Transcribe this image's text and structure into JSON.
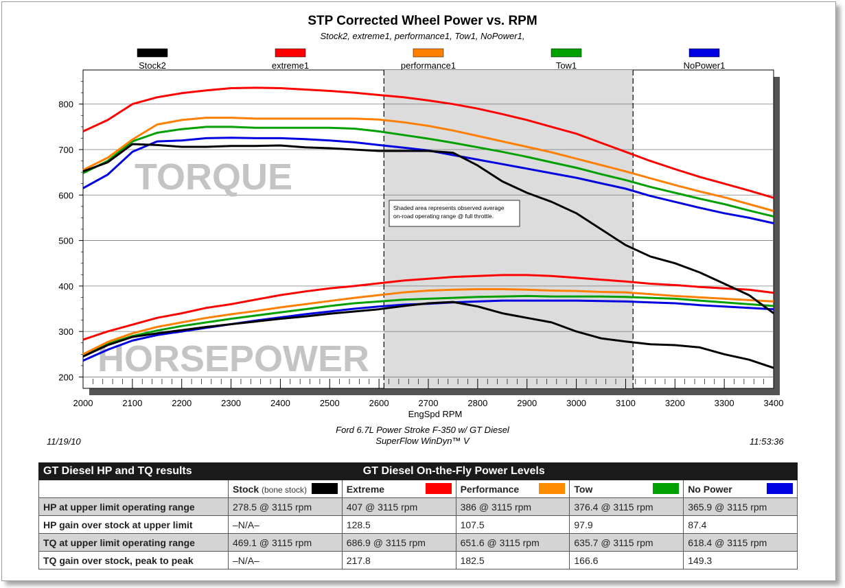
{
  "chart_data": {
    "type": "line",
    "title": "STP Corrected Wheel Power vs. RPM",
    "subtitle": "Stock2, extreme1, performance1, Tow1, NoPower1,",
    "xlabel": "EngSpd  RPM",
    "ylabel": "",
    "xlim": [
      2000,
      3400
    ],
    "ylim": [
      175,
      875
    ],
    "x_ticks": [
      "2000",
      "2100",
      "2200",
      "2300",
      "2400",
      "2500",
      "2600",
      "2700",
      "2800",
      "2900",
      "3000",
      "3100",
      "3200",
      "3300",
      "3400"
    ],
    "y_ticks": [
      "200",
      "300",
      "400",
      "500",
      "600",
      "700",
      "800"
    ],
    "grid": "horizontal",
    "legend_position": "top",
    "shaded_range": [
      2610,
      3115
    ],
    "shaded_note": [
      "Shaded area represents observed average",
      "on-road operating range @ full throttle."
    ],
    "overlay_labels": {
      "torque": "TORQUE",
      "horsepower": "HORSEPOWER"
    },
    "x": [
      2000,
      2050,
      2100,
      2150,
      2200,
      2250,
      2300,
      2350,
      2400,
      2450,
      2500,
      2550,
      2600,
      2650,
      2700,
      2750,
      2800,
      2850,
      2900,
      2950,
      3000,
      3050,
      3100,
      3150,
      3200,
      3250,
      3300,
      3350,
      3400
    ],
    "series": [
      {
        "name": "Stock2",
        "color": "#000000",
        "torque": [
          652,
          672,
          712,
          710,
          706,
          706,
          708,
          708,
          709,
          705,
          703,
          700,
          697,
          697,
          697,
          693,
          665,
          630,
          605,
          585,
          560,
          525,
          490,
          465,
          450,
          430,
          405,
          380,
          340
        ],
        "hp": [
          245,
          270,
          288,
          296,
          303,
          310,
          316,
          322,
          328,
          333,
          339,
          344,
          349,
          356,
          362,
          365,
          355,
          340,
          330,
          320,
          300,
          285,
          278,
          272,
          270,
          265,
          250,
          238,
          220
        ]
      },
      {
        "name": "extreme1",
        "color": "#ff0000",
        "torque": [
          740,
          765,
          800,
          815,
          824,
          830,
          835,
          836,
          835,
          832,
          829,
          825,
          820,
          815,
          808,
          800,
          790,
          778,
          765,
          750,
          735,
          715,
          695,
          675,
          657,
          640,
          625,
          610,
          594
        ],
        "hp": [
          282,
          300,
          315,
          330,
          340,
          352,
          360,
          370,
          380,
          388,
          395,
          400,
          406,
          412,
          416,
          420,
          422,
          424,
          424,
          422,
          418,
          414,
          410,
          405,
          402,
          398,
          395,
          392,
          385
        ]
      },
      {
        "name": "performance1",
        "color": "#ff8000",
        "torque": [
          655,
          682,
          722,
          755,
          765,
          770,
          770,
          768,
          768,
          768,
          768,
          768,
          766,
          760,
          752,
          742,
          730,
          718,
          706,
          694,
          680,
          666,
          652,
          637,
          622,
          608,
          595,
          580,
          565
        ]
      },
      {
        "name": "Tow1",
        "color": "#00a000",
        "torque": [
          648,
          675,
          718,
          737,
          745,
          750,
          750,
          748,
          748,
          748,
          748,
          746,
          740,
          732,
          724,
          715,
          705,
          695,
          684,
          672,
          660,
          646,
          633,
          618,
          605,
          592,
          580,
          566,
          553
        ]
      },
      {
        "name": "NoPower1",
        "color": "#0000e0",
        "torque": [
          615,
          645,
          695,
          718,
          720,
          725,
          726,
          725,
          725,
          723,
          720,
          716,
          710,
          704,
          698,
          688,
          678,
          668,
          658,
          648,
          638,
          626,
          614,
          598,
          585,
          572,
          560,
          550,
          538
        ]
      }
    ],
    "hp_extra": {
      "performance1": [
        250,
        277,
        296,
        310,
        320,
        330,
        338,
        345,
        353,
        360,
        367,
        374,
        380,
        386,
        390,
        392,
        393,
        393,
        392,
        390,
        389,
        387,
        386,
        382,
        378,
        375,
        372,
        369,
        366
      ],
      "Tow1": [
        248,
        273,
        290,
        302,
        312,
        320,
        328,
        335,
        342,
        349,
        356,
        362,
        366,
        370,
        372,
        374,
        376,
        377,
        378,
        377,
        377,
        377,
        376,
        374,
        372,
        368,
        364,
        360,
        356
      ],
      "NoPower1": [
        236,
        260,
        280,
        292,
        300,
        308,
        316,
        324,
        331,
        338,
        344,
        350,
        355,
        359,
        361,
        364,
        366,
        368,
        368,
        368,
        368,
        367,
        366,
        364,
        362,
        358,
        355,
        352,
        349
      ]
    }
  },
  "footer": {
    "line1": "Ford 6.7L Power Stroke F-350 w/ GT Diesel",
    "line2": "SuperFlow WinDyn™ V",
    "date": "11/19/10",
    "time": "11:53:36"
  },
  "table": {
    "left_header": "GT Diesel HP and TQ results",
    "right_header": "GT Diesel On-the-Fly Power Levels",
    "columns": [
      {
        "label": "Stock",
        "sublabel": "(bone stock)",
        "color": "#000000"
      },
      {
        "label": "Extreme",
        "sublabel": "",
        "color": "#ff0000"
      },
      {
        "label": "Performance",
        "sublabel": "",
        "color": "#ff8c00"
      },
      {
        "label": "Tow",
        "sublabel": "",
        "color": "#00a000"
      },
      {
        "label": "No Power",
        "sublabel": "",
        "color": "#0000e0"
      }
    ],
    "rows": [
      {
        "label": "HP at upper limit operating range",
        "values": [
          "278.5 @ 3115 rpm",
          "407 @ 3115 rpm",
          "386 @ 3115 rpm",
          "376.4 @ 3115 rpm",
          "365.9 @ 3115 rpm"
        ]
      },
      {
        "label": "HP gain over stock at upper limit",
        "values": [
          "–N/A–",
          "128.5",
          "107.5",
          "97.9",
          "87.4"
        ]
      },
      {
        "label": "TQ at upper limit operating range",
        "values": [
          "469.1 @ 3115 rpm",
          "686.9 @ 3115 rpm",
          "651.6 @ 3115 rpm",
          "635.7 @ 3115 rpm",
          "618.4 @ 3115 rpm"
        ]
      },
      {
        "label": "TQ gain over stock, peak to peak",
        "values": [
          "–N/A–",
          "217.8",
          "182.5",
          "166.6",
          "149.3"
        ]
      }
    ]
  }
}
